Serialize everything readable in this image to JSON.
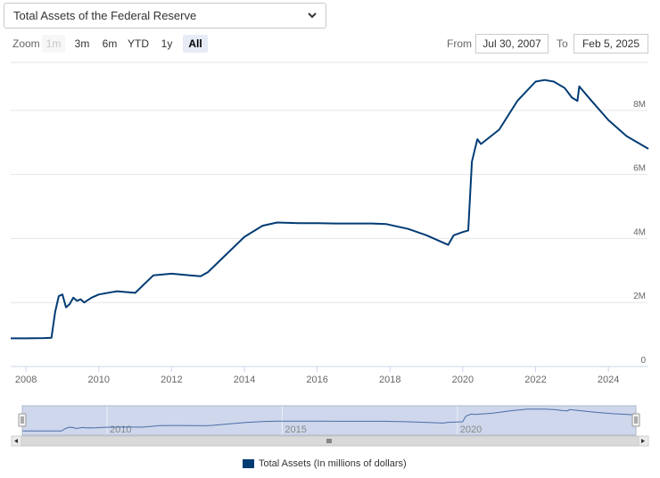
{
  "selector": {
    "value": "Total Assets of the Federal Reserve"
  },
  "toolbar": {
    "zoom_label": "Zoom",
    "buttons": [
      "1m",
      "3m",
      "6m",
      "YTD",
      "1y",
      "All"
    ],
    "from_label": "From",
    "from_value": "Jul 30, 2007",
    "to_label": "To",
    "to_value": "Feb 5, 2025"
  },
  "colors": {
    "line": "#003c74",
    "navigator_fill": "#c5d0e8",
    "grid": "#e6e6e6"
  },
  "chart_data": {
    "type": "line",
    "title": "",
    "xlabel": "",
    "ylabel": "",
    "xlim": [
      2007.58,
      2025.1
    ],
    "ylim": [
      0,
      9.5
    ],
    "y_ticks": [
      0,
      2,
      4,
      6,
      8
    ],
    "y_tick_labels": [
      "0",
      "2M",
      "4M",
      "6M",
      "8M"
    ],
    "x_ticks": [
      2008,
      2010,
      2012,
      2014,
      2016,
      2018,
      2020,
      2022,
      2024
    ],
    "x_tick_labels": [
      "2008",
      "2010",
      "2012",
      "2014",
      "2016",
      "2018",
      "2020",
      "2022",
      "2024"
    ],
    "navigator_tick_labels": [
      "2010",
      "2015",
      "2020"
    ],
    "legend_position": "bottom-center",
    "series": [
      {
        "name": "Total Assets (In millions of dollars)",
        "x": [
          2007.58,
          2008.0,
          2008.5,
          2008.7,
          2008.8,
          2008.9,
          2009.0,
          2009.1,
          2009.2,
          2009.3,
          2009.4,
          2009.5,
          2009.6,
          2009.8,
          2010.0,
          2010.5,
          2011.0,
          2011.5,
          2012.0,
          2012.5,
          2012.8,
          2013.0,
          2013.5,
          2014.0,
          2014.5,
          2014.9,
          2015.5,
          2016.0,
          2016.5,
          2017.0,
          2017.5,
          2017.9,
          2018.5,
          2019.0,
          2019.6,
          2019.75,
          2020.0,
          2020.15,
          2020.25,
          2020.4,
          2020.5,
          2021.0,
          2021.5,
          2022.0,
          2022.25,
          2022.5,
          2022.8,
          2023.0,
          2023.15,
          2023.2,
          2023.5,
          2024.0,
          2024.5,
          2025.1
        ],
        "y": [
          0.88,
          0.88,
          0.89,
          0.9,
          1.7,
          2.2,
          2.25,
          1.85,
          1.95,
          2.15,
          2.05,
          2.1,
          2.0,
          2.15,
          2.25,
          2.35,
          2.3,
          2.85,
          2.9,
          2.85,
          2.82,
          2.95,
          3.5,
          4.05,
          4.4,
          4.5,
          4.48,
          4.48,
          4.47,
          4.47,
          4.47,
          4.45,
          4.3,
          4.1,
          3.8,
          4.1,
          4.2,
          4.25,
          6.4,
          7.1,
          6.95,
          7.4,
          8.3,
          8.9,
          8.95,
          8.9,
          8.7,
          8.4,
          8.3,
          8.75,
          8.35,
          7.7,
          7.2,
          6.8
        ]
      }
    ]
  }
}
